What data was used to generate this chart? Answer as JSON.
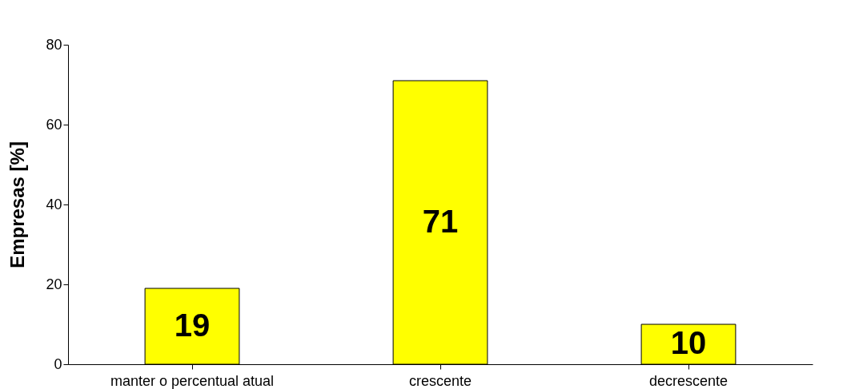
{
  "chart_data": {
    "type": "bar",
    "ylabel": "Empresas [%]",
    "categories": [
      "manter o percentual atual",
      "crescente",
      "decrescente"
    ],
    "values": [
      19,
      71,
      10
    ],
    "color": "#ffff00",
    "ylim": [
      0,
      80
    ],
    "yticks": [
      0,
      20,
      40,
      60,
      80
    ],
    "grid": false,
    "data_labels": true
  }
}
